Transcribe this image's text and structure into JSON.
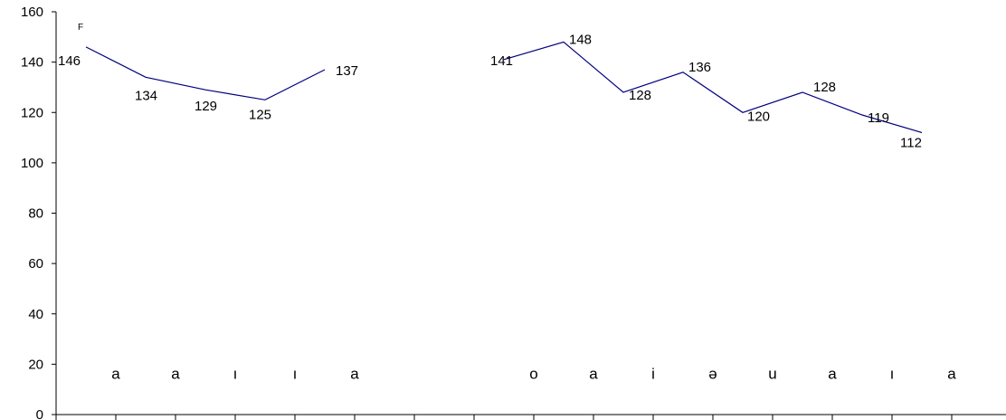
{
  "chart_data": {
    "type": "line",
    "title": "",
    "xlabel": "",
    "ylabel": "F",
    "ylim": [
      0,
      160
    ],
    "yticks": [
      0,
      20,
      40,
      60,
      80,
      100,
      120,
      140,
      160
    ],
    "grid": false,
    "legend": "none",
    "line_color": "#000080",
    "categories": [
      "a",
      "a",
      "ı",
      "ı",
      "a",
      "",
      "",
      "o",
      "a",
      "i",
      "ə",
      "u",
      "a",
      "ı",
      "a",
      ""
    ],
    "series": [
      {
        "x": [
          0.5,
          1.5,
          2.5,
          3.5,
          4.5
        ],
        "values": [
          146,
          134,
          129,
          125,
          137
        ]
      },
      {
        "x": [
          7.5,
          8.5,
          9.5,
          10.5,
          11.5,
          12.5,
          13.5,
          14.5
        ],
        "values": [
          141,
          148,
          128,
          136,
          120,
          128,
          119,
          112
        ]
      }
    ]
  }
}
